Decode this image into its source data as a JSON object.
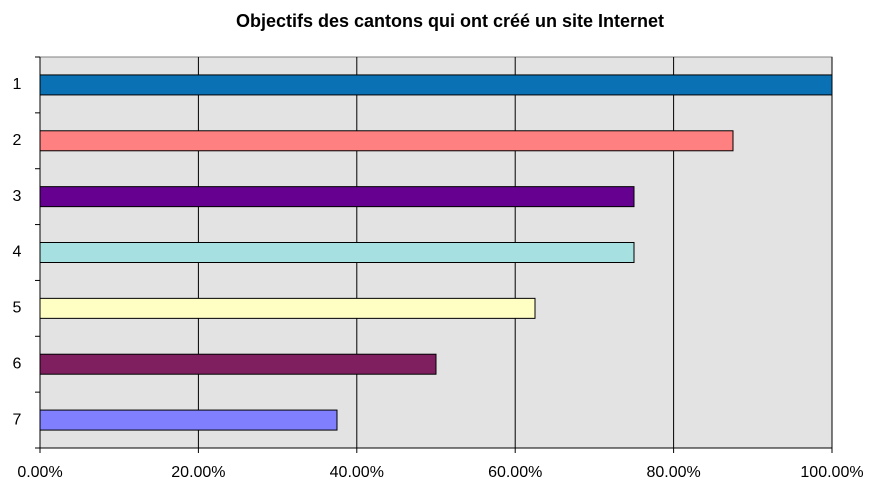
{
  "chart_data": {
    "type": "bar",
    "orientation": "horizontal",
    "title": "Objectifs des cantons qui ont créé un site Internet",
    "categories": [
      "1",
      "2",
      "3",
      "4",
      "5",
      "6",
      "7"
    ],
    "values": [
      100,
      87.5,
      75,
      75,
      62.5,
      50,
      37.5
    ],
    "colors": [
      "#0a72b4",
      "#ff8080",
      "#660090",
      "#a6e0e0",
      "#ffffc4",
      "#7f1f5f",
      "#8080ff"
    ],
    "xlim": [
      0,
      100
    ],
    "xticks": [
      {
        "value": 0,
        "label": "0.00%"
      },
      {
        "value": 20,
        "label": "20.00%"
      },
      {
        "value": 40,
        "label": "40.00%"
      },
      {
        "value": 60,
        "label": "60.00%"
      },
      {
        "value": 80,
        "label": "80.00%"
      },
      {
        "value": 100,
        "label": "100.00%"
      }
    ],
    "grid": true
  }
}
